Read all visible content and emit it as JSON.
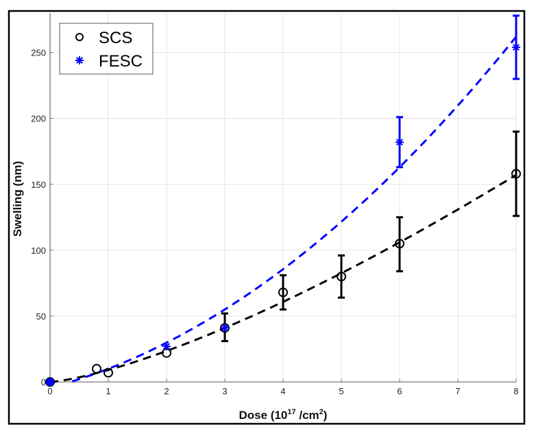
{
  "chart_data": {
    "type": "scatter",
    "title": "",
    "xlabel": "Dose (10",
    "xlabel_sup": "17",
    "xlabel_mid": " /cm",
    "xlabel_sup2": "2",
    "xlabel_end": ")",
    "ylabel": "Swelling (nm)",
    "xlim": [
      0,
      8
    ],
    "ylim": [
      0,
      280
    ],
    "xticks": [
      0,
      1,
      2,
      3,
      4,
      5,
      6,
      7,
      8
    ],
    "yticks": [
      0,
      50,
      100,
      150,
      200,
      250
    ],
    "grid": true,
    "legend_position": "top-left",
    "series": [
      {
        "name": "SCS",
        "marker": "circle",
        "color": "#000000",
        "points": [
          {
            "x": 0,
            "y": 0
          },
          {
            "x": 0.8,
            "y": 10
          },
          {
            "x": 1,
            "y": 7
          },
          {
            "x": 2,
            "y": 22
          },
          {
            "x": 3,
            "y": 41,
            "err_low": 31,
            "err_high": 52
          },
          {
            "x": 4,
            "y": 68,
            "err_low": 55,
            "err_high": 81
          },
          {
            "x": 5,
            "y": 80,
            "err_low": 64,
            "err_high": 96
          },
          {
            "x": 6,
            "y": 105,
            "err_low": 84,
            "err_high": 125
          },
          {
            "x": 8,
            "y": 158,
            "err_low": 126,
            "err_high": 190
          }
        ],
        "fit": {
          "form": "a*x^b",
          "a": 9.1,
          "b": 1.37,
          "x_from": 0,
          "x_to": 8
        }
      },
      {
        "name": "FESC",
        "marker": "asterisk",
        "color": "#0000ff",
        "points": [
          {
            "x": 0,
            "y": 0
          },
          {
            "x": 2,
            "y": 27
          },
          {
            "x": 3,
            "y": 41
          },
          {
            "x": 6,
            "y": 182,
            "err_low": 163,
            "err_high": 201
          },
          {
            "x": 8,
            "y": 254,
            "err_low": 230,
            "err_high": 278
          }
        ],
        "fit": {
          "form": "a*x^2+b*x+c",
          "a": 2.7,
          "b": 11.7,
          "c": -4.4,
          "x_from": 0.38,
          "x_to": 8
        }
      }
    ]
  }
}
